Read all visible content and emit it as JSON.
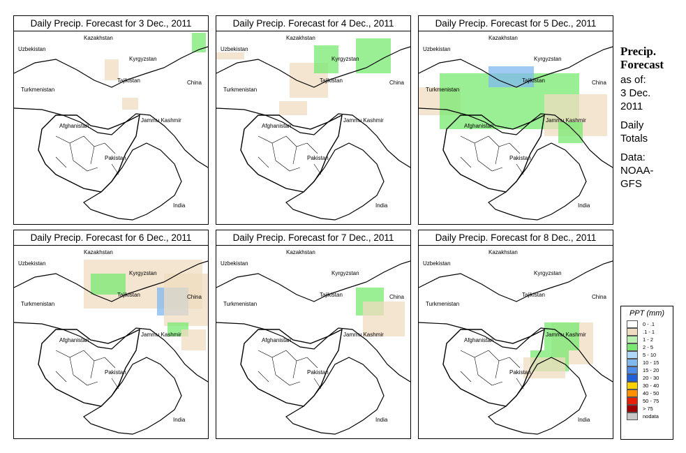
{
  "panels": [
    {
      "title": "Daily Precip. Forecast for  3 Dec., 2011"
    },
    {
      "title": "Daily Precip. Forecast for  4 Dec., 2011"
    },
    {
      "title": "Daily Precip. Forecast for  5 Dec., 2011"
    },
    {
      "title": "Daily Precip. Forecast for  6 Dec., 2011"
    },
    {
      "title": "Daily Precip. Forecast for  7 Dec., 2011"
    },
    {
      "title": "Daily Precip. Forecast for  8 Dec., 2011"
    }
  ],
  "map_labels": {
    "uzbekistan": "Uzbekistan",
    "kazakhstan": "Kazakhstan",
    "kyrgyzstan": "Kyrgyzstan",
    "tajikistan": "Tajikistan",
    "turkmenistan": "Turkmenistan",
    "china": "China",
    "afghanistan": "Afghanistan",
    "jammu_kashmir": "Jammu Kashmir",
    "pakistan": "Pakistan",
    "india": "India"
  },
  "sidebar": {
    "title_line1": "Precip.",
    "title_line2": "Forecast",
    "as_of": "as of:",
    "date_line1": "3 Dec.",
    "date_line2": "2011",
    "totals_line1": "Daily",
    "totals_line2": "Totals",
    "data_line1": "Data:",
    "data_line2": "NOAA-",
    "data_line3": "GFS"
  },
  "legend": {
    "title": "PPT (mm)",
    "items": [
      {
        "label": "0 - .1",
        "color": "#ffffff"
      },
      {
        "label": ".1 - 1",
        "color": "#f0dcc0"
      },
      {
        "label": "1 - 2",
        "color": "#b8f0b0"
      },
      {
        "label": "2 - 5",
        "color": "#78e870"
      },
      {
        "label": "5 - 10",
        "color": "#b0d8f8"
      },
      {
        "label": "10 - 15",
        "color": "#80b8f0"
      },
      {
        "label": "15 - 20",
        "color": "#4c8ce8"
      },
      {
        "label": "20 - 30",
        "color": "#2060d8"
      },
      {
        "label": "30 - 40",
        "color": "#ffd000"
      },
      {
        "label": "40 - 50",
        "color": "#ff9000"
      },
      {
        "label": "50 - 75",
        "color": "#e82000"
      },
      {
        "label": "> 75",
        "color": "#a00000"
      },
      {
        "label": "nodata",
        "color": "#c8c8c8"
      }
    ]
  },
  "precip_areas": [
    [
      [
        "tan",
        [
          160,
          8,
          128,
          50
        ]
      ],
      [
        "green",
        [
          255,
          2,
          275,
          30
        ]
      ],
      [
        "tan",
        [
          130,
          40,
          150,
          70
        ]
      ],
      [
        "tan",
        [
          155,
          95,
          178,
          112
        ]
      ]
    ],
    [
      [
        "tan",
        [
          105,
          45,
          160,
          95
        ]
      ],
      [
        "green",
        [
          140,
          20,
          175,
          60
        ]
      ],
      [
        "green",
        [
          200,
          10,
          250,
          60
        ]
      ],
      [
        "tan",
        [
          0,
          30,
          40,
          40
        ]
      ],
      [
        "tan",
        [
          90,
          100,
          130,
          120
        ]
      ]
    ],
    [
      [
        "tan",
        [
          0,
          80,
          60,
          120
        ]
      ],
      [
        "green",
        [
          30,
          60,
          230,
          140
        ]
      ],
      [
        "blue",
        [
          100,
          50,
          165,
          80
        ]
      ],
      [
        "tan",
        [
          180,
          90,
          270,
          150
        ]
      ],
      [
        "green",
        [
          200,
          130,
          235,
          160
        ]
      ]
    ],
    [
      [
        "tan",
        [
          100,
          20,
          270,
          90
        ]
      ],
      [
        "green",
        [
          110,
          40,
          160,
          70
        ]
      ],
      [
        "blue",
        [
          205,
          60,
          250,
          100
        ]
      ],
      [
        "tan",
        [
          215,
          40,
          280,
          115
        ]
      ],
      [
        "green",
        [
          220,
          110,
          250,
          130
        ]
      ],
      [
        "tan",
        [
          240,
          120,
          275,
          150
        ]
      ]
    ],
    [
      [
        "green",
        [
          200,
          60,
          240,
          100
        ]
      ],
      [
        "tan",
        [
          210,
          80,
          270,
          130
        ]
      ]
    ],
    [
      [
        "tan",
        [
          190,
          110,
          250,
          170
        ]
      ],
      [
        "green",
        [
          180,
          110,
          230,
          150
        ]
      ],
      [
        "green",
        [
          160,
          150,
          215,
          180
        ]
      ],
      [
        "tan",
        [
          150,
          160,
          210,
          190
        ]
      ]
    ]
  ]
}
